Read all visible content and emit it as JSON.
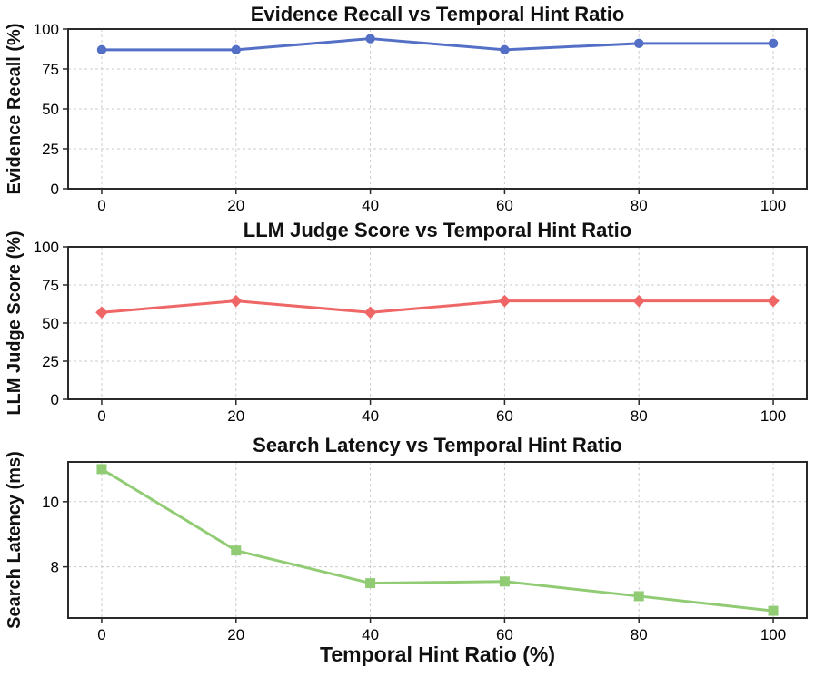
{
  "figure": {
    "xlabel": "Temporal Hint Ratio (%)",
    "background": "#ffffff",
    "grid_color": "#cccccc",
    "spine_color": "#2a2a2a",
    "tick_text_color": "#000000",
    "grid": true,
    "legend": "none"
  },
  "chart_data": [
    {
      "type": "line",
      "title": "Evidence Recall vs Temporal Hint Ratio",
      "ylabel": "Evidence Recall (%)",
      "xlabel": "",
      "x": [
        0,
        20,
        40,
        60,
        80,
        100
      ],
      "values": [
        87,
        87,
        94,
        87,
        91,
        91
      ],
      "color": "#5470C6",
      "marker": "circle",
      "xlim": [
        -5,
        105
      ],
      "ylim": [
        0,
        100
      ],
      "xticks": [
        0,
        20,
        40,
        60,
        80,
        100
      ],
      "yticks": [
        0,
        25,
        50,
        75,
        100
      ]
    },
    {
      "type": "line",
      "title": "LLM Judge Score vs Temporal Hint Ratio",
      "ylabel": "LLM Judge Score (%)",
      "xlabel": "",
      "x": [
        0,
        20,
        40,
        60,
        80,
        100
      ],
      "values": [
        57,
        64.5,
        57,
        64.5,
        64.5,
        64.5
      ],
      "color": "#EE6666",
      "marker": "diamond",
      "xlim": [
        -5,
        105
      ],
      "ylim": [
        0,
        100
      ],
      "xticks": [
        0,
        20,
        40,
        60,
        80,
        100
      ],
      "yticks": [
        0,
        25,
        50,
        75,
        100
      ]
    },
    {
      "type": "line",
      "title": "Search Latency vs Temporal Hint Ratio",
      "ylabel": "Search Latency (ms)",
      "xlabel": "Temporal Hint Ratio (%)",
      "x": [
        0,
        20,
        40,
        60,
        80,
        100
      ],
      "values": [
        11.0,
        8.5,
        7.5,
        7.55,
        7.1,
        6.65
      ],
      "color": "#91CC75",
      "marker": "square",
      "xlim": [
        -5,
        105
      ],
      "ylim": [
        6.43,
        11.22
      ],
      "xticks": [
        0,
        20,
        40,
        60,
        80,
        100
      ],
      "yticks": [
        8,
        10
      ]
    }
  ]
}
